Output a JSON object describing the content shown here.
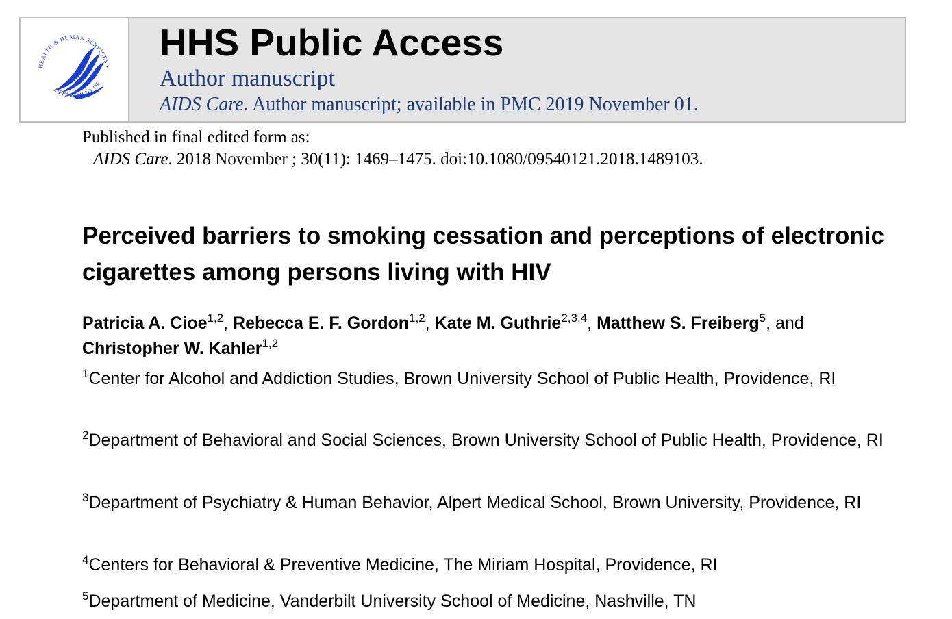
{
  "banner": {
    "title": "HHS Public Access",
    "subtitle": "Author manuscript",
    "journal": "AIDS Care",
    "availability": ". Author manuscript; available in PMC 2019 November 01.",
    "logo": {
      "icon": "hhs-eagle-seal-icon",
      "ring_top_text": "HEALTH & HUMAN SERVICES • USA",
      "ring_bottom_text": "DEPARTMENT OF",
      "color": "#1a3fd0"
    }
  },
  "publication": {
    "label": "Published in final edited form as:",
    "journal": "AIDS Care",
    "citation": ". 2018 November ; 30(11): 1469–1475. doi:10.1080/09540121.2018.1489103."
  },
  "article": {
    "title": "Perceived barriers to smoking cessation and perceptions of electronic cigarettes among persons living with HIV"
  },
  "authors": [
    {
      "name": "Patricia A. Cioe",
      "sup": "1,2",
      "sep": ", "
    },
    {
      "name": "Rebecca E. F. Gordon",
      "sup": "1,2",
      "sep": ", "
    },
    {
      "name": "Kate M. Guthrie",
      "sup": "2,3,4",
      "sep": ", "
    },
    {
      "name": "Matthew S. Freiberg",
      "sup": "5",
      "sep": ", and "
    },
    {
      "name": "Christopher W. Kahler",
      "sup": "1,2",
      "sep": ""
    }
  ],
  "affiliations": [
    {
      "num": "1",
      "text": "Center for Alcohol and Addiction Studies, Brown University School of Public Health, Providence, RI"
    },
    {
      "num": "2",
      "text": "Department of Behavioral and Social Sciences, Brown University School of Public Health, Providence, RI"
    },
    {
      "num": "3",
      "text": "Department of Psychiatry & Human Behavior, Alpert Medical School, Brown University, Providence, RI"
    },
    {
      "num": "4",
      "text": "Centers for Behavioral & Preventive Medicine, The Miriam Hospital, Providence, RI"
    },
    {
      "num": "5",
      "text": "Department of Medicine, Vanderbilt University School of Medicine, Nashville, TN"
    }
  ]
}
